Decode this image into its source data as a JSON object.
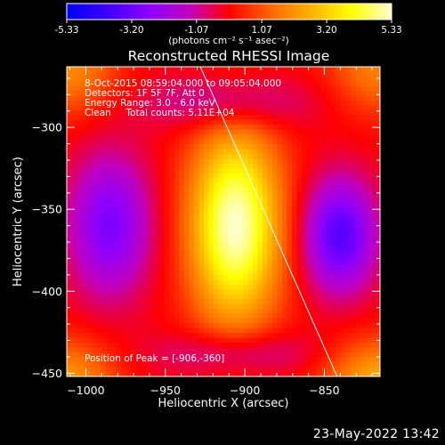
{
  "colorbar": {
    "ticks": [
      "-5.33",
      "-3.20",
      "-1.07",
      "1.07",
      "3.20",
      "5.33"
    ],
    "tick_values": [
      -5.33,
      -3.2,
      -1.07,
      1.07,
      3.2,
      5.33
    ],
    "unit_label": "(photons cm⁻² s⁻¹ asec⁻²)",
    "colors": [
      "#0000ff",
      "#3d00ff",
      "#8a00ff",
      "#c000c0",
      "#ff0000",
      "#ff6600",
      "#ffb000",
      "#ffff00",
      "#ffffd0"
    ]
  },
  "chart_data": {
    "type": "heatmap",
    "title": "Reconstructed RHESSI Image",
    "xlabel": "Heliocentric X (arcsec)",
    "ylabel": "Heliocentric Y (arcsec)",
    "xlim": [
      -1012,
      -815
    ],
    "ylim": [
      -452,
      -263
    ],
    "x_ticks": [
      -1000,
      -950,
      -900,
      -850
    ],
    "x_tick_labels": [
      "−1000",
      "−950",
      "−900",
      "−850"
    ],
    "y_ticks": [
      -300,
      -350,
      -400,
      -450
    ],
    "y_tick_labels": [
      "−300",
      "−350",
      "−400",
      "−450"
    ],
    "value_range": [
      -5.33,
      5.33
    ],
    "sources": [
      {
        "x": -906,
        "y": -360,
        "sx": 20,
        "sy": 42,
        "amp": 5.33
      },
      {
        "x": -815,
        "y": -455,
        "sx": 25,
        "sy": 18,
        "amp": 2.6
      },
      {
        "x": -1012,
        "y": -455,
        "sx": 22,
        "sy": 18,
        "amp": 2.2
      },
      {
        "x": -1012,
        "y": -263,
        "sx": 22,
        "sy": 20,
        "amp": 2.0
      },
      {
        "x": -815,
        "y": -263,
        "sx": 22,
        "sy": 20,
        "amp": 1.8
      },
      {
        "x": -840,
        "y": -366,
        "sx": 16,
        "sy": 24,
        "amp": -3.6
      },
      {
        "x": -985,
        "y": -360,
        "sx": 18,
        "sy": 30,
        "amp": -2.9
      },
      {
        "x": -910,
        "y": -285,
        "sx": 35,
        "sy": 12,
        "amp": -1.6
      },
      {
        "x": -905,
        "y": -438,
        "sx": 35,
        "sy": 10,
        "amp": -1.4
      }
    ],
    "limb_line": [
      [
        -928,
        -263
      ],
      [
        -842,
        -452
      ]
    ],
    "annotations": [
      "8-Oct-2015 08:59:04.000 to 09:05:04.000",
      "Detectors: 1F 5F 7F, Att 0",
      "Energy Range: 3.0 - 6.0 keV",
      "Clean     Total counts: 5.11E+04"
    ],
    "peak_label": "Position of Peak = [-906,-360]",
    "peak": [
      -906,
      -360
    ]
  },
  "footer": {
    "datetime": "23-May-2022 13:42"
  }
}
